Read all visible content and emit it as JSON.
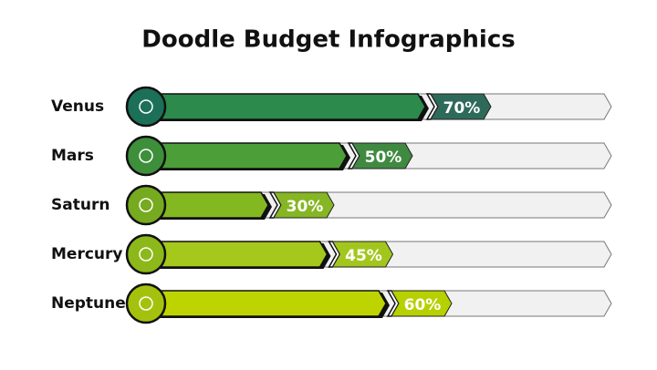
{
  "chart_data": {
    "type": "bar",
    "title": "Doodle Budget Infographics",
    "categories": [
      "Venus",
      "Mars",
      "Saturn",
      "Mercury",
      "Neptune"
    ],
    "values": [
      70,
      50,
      30,
      45,
      60
    ],
    "value_labels": [
      "70%",
      "50%",
      "30%",
      "45%",
      "60%"
    ],
    "colors": [
      "#2b8a4c",
      "#4c9f38",
      "#84b820",
      "#a5c81c",
      "#bed400"
    ],
    "label_colors": [
      "#2e6a5a",
      "#3f8a40",
      "#86b624",
      "#a3c61e",
      "#b7d000"
    ],
    "icon_colors": [
      "#1d7058",
      "#3d8f3a",
      "#76aa1f",
      "#8db81a",
      "#a4c20d"
    ]
  }
}
